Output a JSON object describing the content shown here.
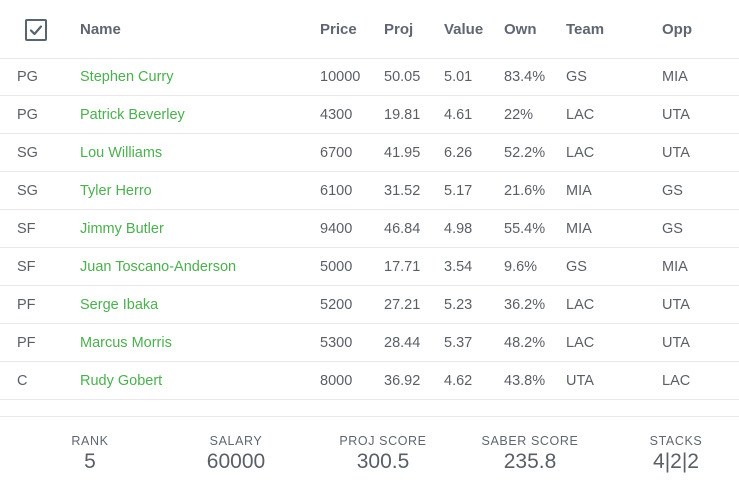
{
  "header": {
    "name": "Name",
    "price": "Price",
    "proj": "Proj",
    "value": "Value",
    "own": "Own",
    "team": "Team",
    "opp": "Opp"
  },
  "rows": [
    {
      "pos": "PG",
      "name": "Stephen Curry",
      "price": "10000",
      "proj": "50.05",
      "value": "5.01",
      "own": "83.4%",
      "team": "GS",
      "opp": "MIA"
    },
    {
      "pos": "PG",
      "name": "Patrick Beverley",
      "price": "4300",
      "proj": "19.81",
      "value": "4.61",
      "own": "22%",
      "team": "LAC",
      "opp": "UTA"
    },
    {
      "pos": "SG",
      "name": "Lou Williams",
      "price": "6700",
      "proj": "41.95",
      "value": "6.26",
      "own": "52.2%",
      "team": "LAC",
      "opp": "UTA"
    },
    {
      "pos": "SG",
      "name": "Tyler Herro",
      "price": "6100",
      "proj": "31.52",
      "value": "5.17",
      "own": "21.6%",
      "team": "MIA",
      "opp": "GS"
    },
    {
      "pos": "SF",
      "name": "Jimmy Butler",
      "price": "9400",
      "proj": "46.84",
      "value": "4.98",
      "own": "55.4%",
      "team": "MIA",
      "opp": "GS"
    },
    {
      "pos": "SF",
      "name": "Juan Toscano-Anderson",
      "price": "5000",
      "proj": "17.71",
      "value": "3.54",
      "own": "9.6%",
      "team": "GS",
      "opp": "MIA"
    },
    {
      "pos": "PF",
      "name": "Serge Ibaka",
      "price": "5200",
      "proj": "27.21",
      "value": "5.23",
      "own": "36.2%",
      "team": "LAC",
      "opp": "UTA"
    },
    {
      "pos": "PF",
      "name": "Marcus Morris",
      "price": "5300",
      "proj": "28.44",
      "value": "5.37",
      "own": "48.2%",
      "team": "LAC",
      "opp": "UTA"
    },
    {
      "pos": "C",
      "name": "Rudy Gobert",
      "price": "8000",
      "proj": "36.92",
      "value": "4.62",
      "own": "43.8%",
      "team": "UTA",
      "opp": "LAC"
    }
  ],
  "summary": {
    "rank_label": "RANK",
    "rank": "5",
    "salary_label": "SALARY",
    "salary": "60000",
    "proj_label": "PROJ SCORE",
    "proj": "300.5",
    "saber_label": "SABER SCORE",
    "saber": "235.8",
    "stacks_label": "STACKS",
    "stacks": "4|2|2"
  },
  "colors": {
    "name_link": "#4caf50",
    "divider": "#e6e8ea",
    "text": "#5a5f66"
  },
  "icons": {
    "select_all": "checkbox-checked-icon"
  }
}
